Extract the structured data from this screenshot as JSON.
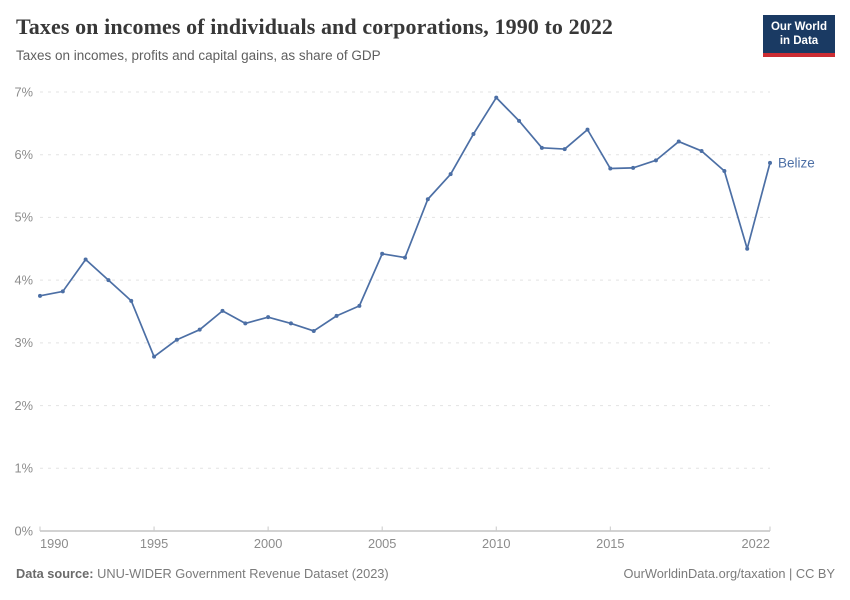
{
  "logo": {
    "line1": "Our World",
    "line2": "in Data",
    "bg_color": "#1a3a63",
    "stripe_color": "#cc2d33"
  },
  "chart_data": {
    "type": "line",
    "title": "Taxes on incomes of individuals and corporations, 1990 to 2022",
    "subtitle": "Taxes on incomes, profits and capital gains, as share of GDP",
    "grid": "horizontal-dashed",
    "legend_position": "end-of-line-label",
    "xlim": [
      1990,
      2022
    ],
    "ylim": [
      0,
      7
    ],
    "x_ticks": [
      1990,
      1995,
      2000,
      2005,
      2010,
      2015,
      2022
    ],
    "y_ticks": [
      0,
      1,
      2,
      3,
      4,
      5,
      6,
      7
    ],
    "y_tick_suffix": "%",
    "line_color": "#4C6FA5",
    "series": [
      {
        "name": "Belize",
        "color": "#4C6FA5",
        "x": [
          1990,
          1991,
          1992,
          1993,
          1994,
          1995,
          1996,
          1997,
          1998,
          1999,
          2000,
          2001,
          2002,
          2003,
          2004,
          2005,
          2006,
          2007,
          2008,
          2009,
          2010,
          2011,
          2012,
          2013,
          2014,
          2015,
          2016,
          2017,
          2018,
          2019,
          2020,
          2021,
          2022
        ],
        "values": [
          3.75,
          3.82,
          4.33,
          4.0,
          3.67,
          2.78,
          3.05,
          3.21,
          3.51,
          3.31,
          3.41,
          3.31,
          3.19,
          3.43,
          3.59,
          4.42,
          4.36,
          5.29,
          5.69,
          6.33,
          6.91,
          6.54,
          6.11,
          6.09,
          6.4,
          5.78,
          5.79,
          5.91,
          6.21,
          6.06,
          5.74,
          4.5,
          5.87
        ]
      }
    ]
  },
  "footer": {
    "source_label": "Data source:",
    "source_text": "UNU-WIDER Government Revenue Dataset (2023)",
    "link_text": "OurWorldinData.org/taxation | CC BY"
  }
}
